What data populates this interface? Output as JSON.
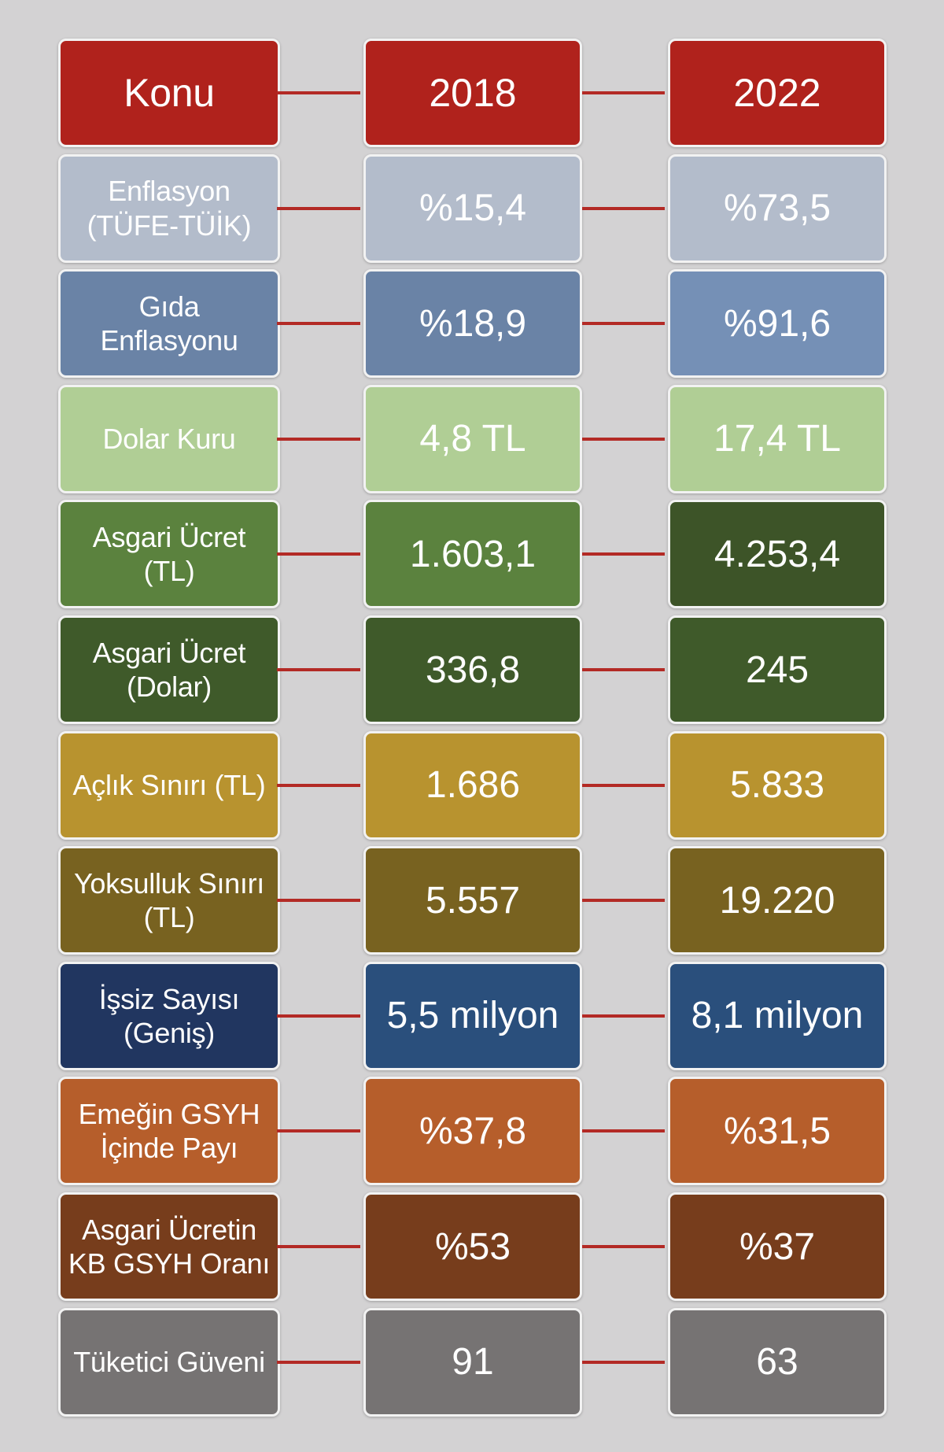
{
  "header": {
    "label": "Konu",
    "y2018": "2018",
    "y2022": "2022",
    "color": "#b0221c"
  },
  "rows": [
    {
      "label": "Enflasyon\n(TÜFE-TÜİK)",
      "v2018": "%15,4",
      "v2022": "%73,5",
      "color_label": "#b3bccb",
      "color_2018": "#b3bccb",
      "color_2022": "#b3bccb"
    },
    {
      "label": "Gıda\nEnflasyonu",
      "v2018": "%18,9",
      "v2022": "%91,6",
      "color_label": "#6a83a6",
      "color_2018": "#6a83a6",
      "color_2022": "#7590b6"
    },
    {
      "label": "Dolar Kuru",
      "v2018": "4,8 TL",
      "v2022": "17,4 TL",
      "color_label": "#b0ce95",
      "color_2018": "#b0ce95",
      "color_2022": "#b0ce95"
    },
    {
      "label": "Asgari Ücret\n(TL)",
      "v2018": "1.603,1",
      "v2022": "4.253,4",
      "color_label": "#5b823e",
      "color_2018": "#5b823e",
      "color_2022": "#3d5428"
    },
    {
      "label": "Asgari Ücret\n(Dolar)",
      "v2018": "336,8",
      "v2022": "245",
      "color_label": "#3f5a2a",
      "color_2018": "#3f5a2a",
      "color_2022": "#3f5a2a"
    },
    {
      "label": "Açlık Sınırı (TL)",
      "v2018": "1.686",
      "v2022": "5.833",
      "color_label": "#b8932f",
      "color_2018": "#b8932f",
      "color_2022": "#b8932f"
    },
    {
      "label": "Yoksulluk Sınırı\n(TL)",
      "v2018": "5.557",
      "v2022": "19.220",
      "color_label": "#786220",
      "color_2018": "#786220",
      "color_2022": "#786220"
    },
    {
      "label": "İşsiz Sayısı\n(Geniş)",
      "v2018": "5,5 milyon",
      "v2022": "8,1 milyon",
      "color_label": "#213660",
      "color_2018": "#2a4f7c",
      "color_2022": "#2a4f7c"
    },
    {
      "label": "Emeğin GSYH\nİçinde Payı",
      "v2018": "%37,8",
      "v2022": "%31,5",
      "color_label": "#b65e2b",
      "color_2018": "#b65e2b",
      "color_2022": "#b65e2b"
    },
    {
      "label": "Asgari Ücretin\nKB GSYH Oranı",
      "v2018": "%53",
      "v2022": "%37",
      "color_label": "#773d1c",
      "color_2018": "#773d1c",
      "color_2022": "#773d1c"
    },
    {
      "label": "Tüketici Güveni",
      "v2018": "91",
      "v2022": "63",
      "color_label": "#767373",
      "color_2018": "#767373",
      "color_2022": "#767373"
    }
  ]
}
